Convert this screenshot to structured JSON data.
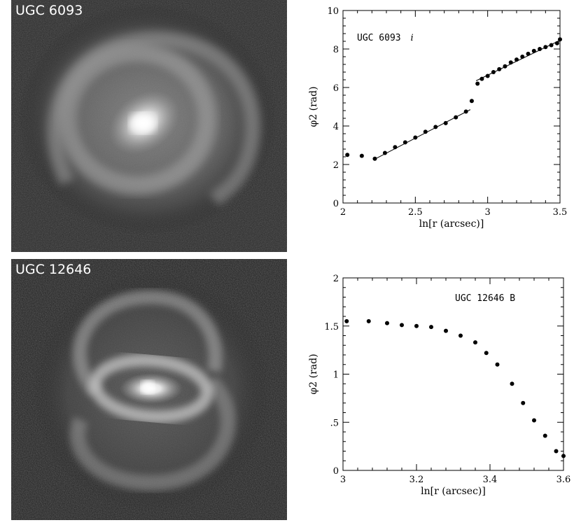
{
  "panels": [
    {
      "label": "UGC 6093",
      "image_type": "spiral-galaxy-image"
    },
    {
      "label": "UGC 12646",
      "image_type": "barred-spiral-galaxy-image"
    }
  ],
  "chart_data": [
    {
      "type": "scatter",
      "annotation": "UGC 6093 i",
      "annotation_main": "UGC 6093",
      "annotation_band": "i",
      "xlabel": "ln[r (arcsec)]",
      "ylabel": "φ2 (rad)",
      "xlim": [
        2,
        3.5
      ],
      "ylim": [
        0,
        10
      ],
      "xticks": [
        2,
        2.5,
        3,
        3.5
      ],
      "xtick_labels": [
        "2",
        "2.5",
        "3",
        "3.5"
      ],
      "yticks": [
        0,
        2,
        4,
        6,
        8,
        10
      ],
      "ytick_labels": [
        "0",
        "2",
        "4",
        "6",
        "8",
        "10"
      ],
      "x": [
        2.03,
        2.13,
        2.22,
        2.29,
        2.36,
        2.43,
        2.5,
        2.57,
        2.64,
        2.71,
        2.78,
        2.85,
        2.89,
        2.93,
        2.96,
        3.0,
        3.04,
        3.08,
        3.12,
        3.16,
        3.2,
        3.24,
        3.28,
        3.32,
        3.36,
        3.4,
        3.44,
        3.48,
        3.51
      ],
      "y": [
        2.5,
        2.45,
        2.3,
        2.6,
        2.9,
        3.15,
        3.4,
        3.7,
        3.95,
        4.15,
        4.45,
        4.75,
        5.3,
        6.2,
        6.45,
        6.6,
        6.8,
        6.95,
        7.1,
        7.3,
        7.45,
        7.6,
        7.75,
        7.9,
        8.0,
        8.1,
        8.2,
        8.3,
        8.5
      ],
      "fit_lines": [
        {
          "x": [
            2.22,
            2.88
          ],
          "y": [
            2.28,
            4.85
          ]
        },
        {
          "x": [
            2.92,
            3.5
          ],
          "y": [
            6.35,
            8.45
          ]
        }
      ],
      "grid": false
    },
    {
      "type": "scatter",
      "annotation": "UGC 12646 B",
      "xlabel": "ln[r (arcsec)]",
      "ylabel": "φ2 (rad)",
      "xlim": [
        3,
        3.6
      ],
      "ylim": [
        0,
        2
      ],
      "xticks": [
        3,
        3.2,
        3.4,
        3.6
      ],
      "xtick_labels": [
        "3",
        "3.2",
        "3.4",
        "3.6"
      ],
      "yticks": [
        0,
        0.5,
        1,
        1.5,
        2
      ],
      "ytick_labels": [
        "0",
        ".5",
        "1",
        "1.5",
        "2"
      ],
      "x": [
        3.01,
        3.07,
        3.12,
        3.16,
        3.2,
        3.24,
        3.28,
        3.32,
        3.36,
        3.39,
        3.42,
        3.46,
        3.49,
        3.52,
        3.55,
        3.58,
        3.61
      ],
      "y": [
        1.55,
        1.55,
        1.53,
        1.51,
        1.5,
        1.49,
        1.45,
        1.4,
        1.33,
        1.22,
        1.1,
        0.9,
        0.7,
        0.52,
        0.36,
        0.2,
        0.15
      ],
      "grid": false
    }
  ]
}
